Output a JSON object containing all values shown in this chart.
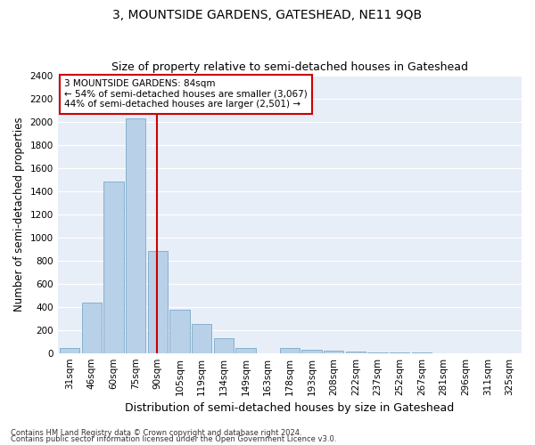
{
  "title": "3, MOUNTSIDE GARDENS, GATESHEAD, NE11 9QB",
  "subtitle": "Size of property relative to semi-detached houses in Gateshead",
  "xlabel": "Distribution of semi-detached houses by size in Gateshead",
  "ylabel": "Number of semi-detached properties",
  "categories": [
    "31sqm",
    "46sqm",
    "60sqm",
    "75sqm",
    "90sqm",
    "105sqm",
    "119sqm",
    "134sqm",
    "149sqm",
    "163sqm",
    "178sqm",
    "193sqm",
    "208sqm",
    "222sqm",
    "237sqm",
    "252sqm",
    "267sqm",
    "281sqm",
    "296sqm",
    "311sqm",
    "325sqm"
  ],
  "values": [
    45,
    435,
    1480,
    2030,
    880,
    375,
    255,
    130,
    40,
    0,
    40,
    30,
    20,
    10,
    5,
    5,
    5,
    0,
    0,
    0,
    0
  ],
  "bar_color": "#b8d0e8",
  "bar_edgecolor": "#7aaac8",
  "line_color": "#cc0000",
  "line_x_index": 3.97,
  "annotation_line1": "3 MOUNTSIDE GARDENS: 84sqm",
  "annotation_line2": "← 54% of semi-detached houses are smaller (3,067)",
  "annotation_line3": "44% of semi-detached houses are larger (2,501) →",
  "annotation_box_facecolor": "#ffffff",
  "annotation_box_edgecolor": "#cc0000",
  "ylim": [
    0,
    2400
  ],
  "yticks": [
    0,
    200,
    400,
    600,
    800,
    1000,
    1200,
    1400,
    1600,
    1800,
    2000,
    2200,
    2400
  ],
  "footnote1": "Contains HM Land Registry data © Crown copyright and database right 2024.",
  "footnote2": "Contains public sector information licensed under the Open Government Licence v3.0.",
  "fig_facecolor": "#ffffff",
  "axes_facecolor": "#e8eef8",
  "grid_color": "#ffffff",
  "title_fontsize": 10,
  "subtitle_fontsize": 9,
  "axis_label_fontsize": 8.5,
  "tick_fontsize": 7.5,
  "footnote_fontsize": 6,
  "annotation_fontsize": 7.5
}
